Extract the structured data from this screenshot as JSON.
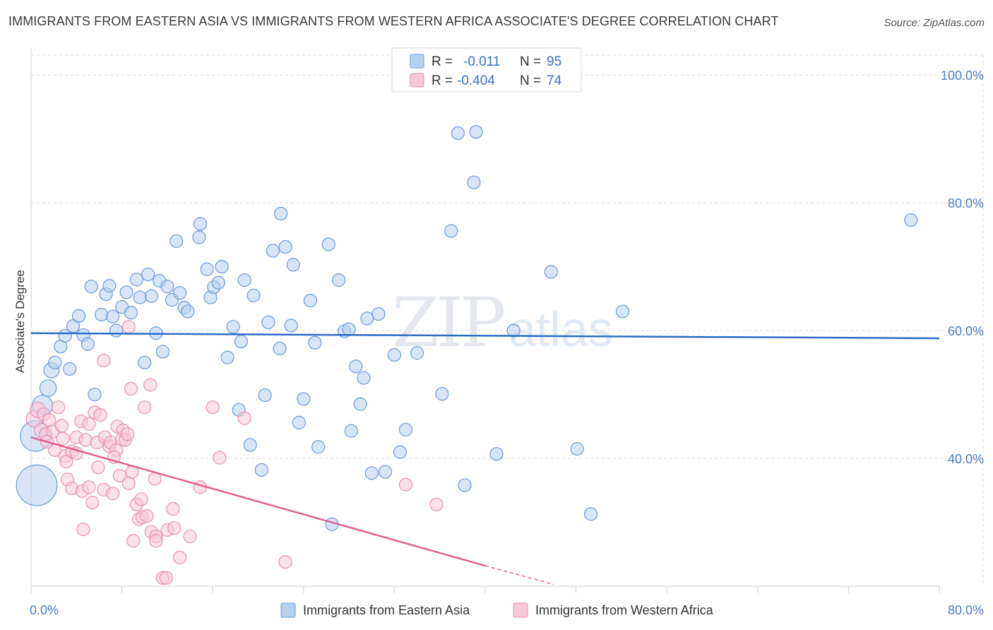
{
  "title": "IMMIGRANTS FROM EASTERN ASIA VS IMMIGRANTS FROM WESTERN AFRICA ASSOCIATE'S DEGREE CORRELATION CHART",
  "source": "Source: ZipAtlas.com",
  "watermark": {
    "part1": "ZIP",
    "part2": "atlas"
  },
  "colors": {
    "blue_fill": "#b8d0f0",
    "blue_stroke": "#6a9ad8",
    "blue_line": "#2b6cc4",
    "pink_fill": "#f8c8d8",
    "pink_stroke": "#e890b0",
    "pink_line": "#e0608e",
    "tick_text": "#4a7cc9",
    "grid": "#dcdcdc"
  },
  "legend": {
    "rows": [
      {
        "r_label": "R =",
        "r_value": "-0.011",
        "n_label": "N =",
        "n_value": "95"
      },
      {
        "r_label": "R =",
        "r_value": "-0.404",
        "n_label": "N =",
        "n_value": "74"
      }
    ]
  },
  "bottom_legend": [
    "Immigrants from Eastern Asia",
    "Immigrants from Western Africa"
  ],
  "chart_data": {
    "type": "scatter",
    "title": "IMMIGRANTS FROM EASTERN ASIA VS IMMIGRANTS FROM WESTERN AFRICA ASSOCIATE'S DEGREE CORRELATION CHART",
    "ylabel": "Associate's Degree",
    "xlim": [
      0,
      80
    ],
    "ylim": [
      20,
      104
    ],
    "x_tick_labels": [
      {
        "value": 0,
        "label": "0.0%"
      },
      {
        "value": 80,
        "label": "80.0%"
      }
    ],
    "y_tick_labels": [
      {
        "value": 40,
        "label": "40.0%"
      },
      {
        "value": 60,
        "label": "60.0%"
      },
      {
        "value": 80,
        "label": "80.0%"
      },
      {
        "value": 100,
        "label": "100.0%"
      }
    ],
    "grid": true,
    "legend_position": "top-center",
    "series": [
      {
        "name": "Immigrants from Eastern Asia",
        "r": -0.011,
        "n": 95,
        "trend": {
          "x": [
            0,
            80
          ],
          "y": [
            59.6,
            58.8
          ]
        },
        "points": [
          [
            0.5,
            35.8,
            3.2
          ],
          [
            0.4,
            43.5,
            2.4
          ],
          [
            1.0,
            48.3,
            1.6
          ],
          [
            1.5,
            51.0,
            1.3
          ],
          [
            1.8,
            53.8,
            1.2
          ],
          [
            2.1,
            55.0,
            1.0
          ],
          [
            2.6,
            57.5,
            1.0
          ],
          [
            3.0,
            59.2,
            1.0
          ],
          [
            3.4,
            54.0,
            1.0
          ],
          [
            3.7,
            60.7,
            1.0
          ],
          [
            4.2,
            62.3,
            1.0
          ],
          [
            4.6,
            59.3,
            1.0
          ],
          [
            5.0,
            57.9,
            1.0
          ],
          [
            5.3,
            66.9,
            1.0
          ],
          [
            5.6,
            50.0,
            1.0
          ],
          [
            6.2,
            62.5,
            1.0
          ],
          [
            6.6,
            65.7,
            1.0
          ],
          [
            6.9,
            67.0,
            1.0
          ],
          [
            7.2,
            62.2,
            1.0
          ],
          [
            7.5,
            60.0,
            1.0
          ],
          [
            8.0,
            63.7,
            1.0
          ],
          [
            8.4,
            66.0,
            1.0
          ],
          [
            8.8,
            62.8,
            1.0
          ],
          [
            9.3,
            68.0,
            1.0
          ],
          [
            9.6,
            65.2,
            1.0
          ],
          [
            10.0,
            55.0,
            1.0
          ],
          [
            10.3,
            68.8,
            1.0
          ],
          [
            10.6,
            65.4,
            1.0
          ],
          [
            11.0,
            59.6,
            1.0
          ],
          [
            11.3,
            67.8,
            1.0
          ],
          [
            11.6,
            56.7,
            1.0
          ],
          [
            12.0,
            66.9,
            1.0
          ],
          [
            12.4,
            64.8,
            1.0
          ],
          [
            12.8,
            74.0,
            1.0
          ],
          [
            13.1,
            65.9,
            1.0
          ],
          [
            13.5,
            63.6,
            1.0
          ],
          [
            13.8,
            63.0,
            1.0
          ],
          [
            14.8,
            74.6,
            1.0
          ],
          [
            14.9,
            76.7,
            1.0
          ],
          [
            15.5,
            69.6,
            1.0
          ],
          [
            15.8,
            65.2,
            1.0
          ],
          [
            16.1,
            66.8,
            1.0
          ],
          [
            16.5,
            67.5,
            1.0
          ],
          [
            16.8,
            70.0,
            1.0
          ],
          [
            17.3,
            55.8,
            1.0
          ],
          [
            17.8,
            60.6,
            1.0
          ],
          [
            18.3,
            47.6,
            1.0
          ],
          [
            18.5,
            58.3,
            1.0
          ],
          [
            18.8,
            67.9,
            1.0
          ],
          [
            19.3,
            42.1,
            1.0
          ],
          [
            19.6,
            65.5,
            1.0
          ],
          [
            20.3,
            38.2,
            1.0
          ],
          [
            20.6,
            49.9,
            1.0
          ],
          [
            20.9,
            61.3,
            1.0
          ],
          [
            21.3,
            72.5,
            1.0
          ],
          [
            21.9,
            57.2,
            1.0
          ],
          [
            22.0,
            78.3,
            1.0
          ],
          [
            22.4,
            73.1,
            1.0
          ],
          [
            22.9,
            60.8,
            1.0
          ],
          [
            23.1,
            70.3,
            1.0
          ],
          [
            23.6,
            45.6,
            1.0
          ],
          [
            24.0,
            49.3,
            1.0
          ],
          [
            24.6,
            64.7,
            1.0
          ],
          [
            25.0,
            58.1,
            1.0
          ],
          [
            25.3,
            41.8,
            1.0
          ],
          [
            26.2,
            73.5,
            1.0
          ],
          [
            26.5,
            29.7,
            1.0
          ],
          [
            27.1,
            67.9,
            1.0
          ],
          [
            27.6,
            59.9,
            1.0
          ],
          [
            28.0,
            60.2,
            1.0
          ],
          [
            28.2,
            44.3,
            1.0
          ],
          [
            28.6,
            54.4,
            1.0
          ],
          [
            29.0,
            48.5,
            1.0
          ],
          [
            29.3,
            52.6,
            1.0
          ],
          [
            29.6,
            61.9,
            1.0
          ],
          [
            30.0,
            37.7,
            1.0
          ],
          [
            30.6,
            62.6,
            1.0
          ],
          [
            31.2,
            37.9,
            1.0
          ],
          [
            32.0,
            56.2,
            1.0
          ],
          [
            32.5,
            41.0,
            1.0
          ],
          [
            33.0,
            44.5,
            1.0
          ],
          [
            34.0,
            56.5,
            1.0
          ],
          [
            36.2,
            50.1,
            1.0
          ],
          [
            37.0,
            75.6,
            1.0
          ],
          [
            37.6,
            90.9,
            1.0
          ],
          [
            38.2,
            35.8,
            1.0
          ],
          [
            39.0,
            83.2,
            1.0
          ],
          [
            39.2,
            91.1,
            1.0
          ],
          [
            41.0,
            40.7,
            1.0
          ],
          [
            42.5,
            60.0,
            1.0
          ],
          [
            45.8,
            69.2,
            1.0
          ],
          [
            48.1,
            41.5,
            1.0
          ],
          [
            49.3,
            31.3,
            1.0
          ],
          [
            52.1,
            63.0,
            1.0
          ],
          [
            77.5,
            77.3,
            1.0
          ]
        ]
      },
      {
        "name": "Immigrants from Western Africa",
        "r": -0.404,
        "n": 74,
        "trend": {
          "x": [
            0,
            40
          ],
          "y": [
            43.3,
            23.2
          ]
        },
        "trend_dashed": {
          "x": [
            40,
            46
          ],
          "y": [
            23.2,
            20.3
          ]
        },
        "points": [
          [
            0.3,
            46.2,
            1.3
          ],
          [
            0.6,
            47.6,
            1.2
          ],
          [
            0.9,
            44.4,
            1.1
          ],
          [
            1.1,
            46.9,
            1.0
          ],
          [
            1.3,
            43.8,
            1.0
          ],
          [
            1.6,
            46.0,
            1.0
          ],
          [
            1.9,
            44.2,
            1.0
          ],
          [
            2.1,
            41.3,
            1.0
          ],
          [
            2.4,
            48.0,
            1.0
          ],
          [
            2.8,
            43.1,
            1.0
          ],
          [
            3.0,
            40.4,
            1.0
          ],
          [
            3.1,
            39.5,
            1.0
          ],
          [
            3.2,
            36.7,
            1.0
          ],
          [
            3.6,
            35.3,
            1.0
          ],
          [
            3.6,
            41.1,
            1.0
          ],
          [
            4.0,
            40.8,
            1.0
          ],
          [
            4.0,
            43.3,
            1.0
          ],
          [
            4.4,
            45.8,
            1.0
          ],
          [
            4.5,
            34.9,
            1.0
          ],
          [
            4.6,
            28.9,
            1.0
          ],
          [
            4.8,
            42.9,
            1.0
          ],
          [
            5.1,
            35.5,
            1.0
          ],
          [
            5.1,
            45.4,
            1.0
          ],
          [
            5.4,
            33.1,
            1.0
          ],
          [
            5.6,
            47.2,
            1.0
          ],
          [
            5.8,
            42.5,
            1.0
          ],
          [
            6.1,
            46.8,
            1.0
          ],
          [
            6.4,
            35.1,
            1.0
          ],
          [
            6.4,
            55.3,
            1.0
          ],
          [
            6.5,
            43.3,
            1.0
          ],
          [
            6.9,
            41.9,
            1.0
          ],
          [
            7.0,
            42.5,
            1.0
          ],
          [
            7.2,
            34.5,
            1.0
          ],
          [
            7.5,
            41.3,
            1.0
          ],
          [
            7.6,
            45.0,
            1.0
          ],
          [
            7.8,
            37.3,
            1.0
          ],
          [
            8.0,
            43.0,
            1.0
          ],
          [
            8.1,
            44.4,
            1.0
          ],
          [
            8.3,
            42.9,
            1.0
          ],
          [
            8.5,
            43.8,
            1.0
          ],
          [
            8.6,
            60.6,
            1.0
          ],
          [
            8.6,
            36.1,
            1.0
          ],
          [
            8.8,
            50.9,
            1.0
          ],
          [
            8.9,
            37.9,
            1.0
          ],
          [
            9.0,
            27.1,
            1.0
          ],
          [
            9.3,
            32.8,
            1.0
          ],
          [
            9.5,
            30.5,
            1.0
          ],
          [
            9.8,
            30.8,
            1.0
          ],
          [
            10.0,
            48.0,
            1.0
          ],
          [
            10.2,
            31.0,
            1.0
          ],
          [
            10.5,
            51.5,
            1.0
          ],
          [
            10.6,
            28.5,
            1.0
          ],
          [
            11.0,
            27.8,
            1.0
          ],
          [
            11.0,
            27.1,
            1.0
          ],
          [
            11.6,
            21.3,
            1.0
          ],
          [
            11.9,
            21.3,
            1.0
          ],
          [
            12.0,
            28.8,
            1.0
          ],
          [
            12.5,
            32.1,
            1.0
          ],
          [
            12.6,
            29.1,
            1.0
          ],
          [
            13.1,
            24.5,
            1.0
          ],
          [
            14.0,
            27.8,
            1.0
          ],
          [
            14.9,
            35.5,
            1.0
          ],
          [
            16.0,
            48.0,
            1.0
          ],
          [
            16.6,
            40.1,
            1.0
          ],
          [
            18.8,
            46.3,
            1.0
          ],
          [
            22.4,
            23.8,
            1.0
          ],
          [
            33.0,
            35.9,
            1.0
          ],
          [
            35.7,
            32.8,
            1.0
          ],
          [
            1.4,
            42.6,
            1.0
          ],
          [
            2.7,
            45.1,
            1.0
          ],
          [
            5.9,
            38.6,
            1.0
          ],
          [
            7.3,
            40.2,
            1.0
          ],
          [
            9.7,
            33.6,
            1.0
          ],
          [
            10.9,
            36.8,
            1.0
          ]
        ]
      }
    ]
  }
}
